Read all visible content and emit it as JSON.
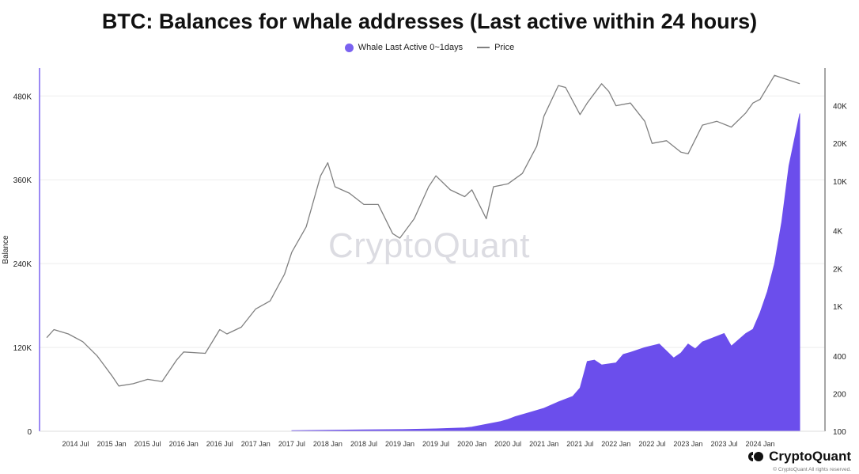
{
  "chart_data": {
    "type": "area",
    "title": "BTC: Balances for whale addresses (Last active within 24 hours)",
    "ylabel": "Balance",
    "legend_position": "top-center",
    "grid": true,
    "x_ticks": [
      "2014 Jul",
      "2015 Jan",
      "2015 Jul",
      "2016 Jan",
      "2016 Jul",
      "2017 Jan",
      "2017 Jul",
      "2018 Jan",
      "2018 Jul",
      "2019 Jan",
      "2019 Jul",
      "2020 Jan",
      "2020 Jul",
      "2021 Jan",
      "2021 Jul",
      "2022 Jan",
      "2022 Jul",
      "2023 Jan",
      "2023 Jul",
      "2024 Jan"
    ],
    "y_left": {
      "min": 0,
      "max": 480000,
      "ticks": [
        0,
        120000,
        240000,
        360000,
        480000
      ],
      "tick_labels": [
        "0",
        "120K",
        "240K",
        "360K",
        "480K"
      ]
    },
    "y_right": {
      "scale": "log",
      "min": 100,
      "max": 80000,
      "ticks": [
        100,
        200,
        400,
        1000,
        2000,
        4000,
        10000,
        20000,
        40000
      ],
      "tick_labels": [
        "100",
        "200",
        "400",
        "1K",
        "2K",
        "4K",
        "10K",
        "20K",
        "40K"
      ]
    },
    "series": [
      {
        "name": "Whale Last Active 0~1days",
        "type": "area",
        "color": "#6b4eec",
        "axis": "left",
        "x": [
          2017.5,
          2018.0,
          2018.5,
          2019.0,
          2019.5,
          2019.9,
          2020.0,
          2020.2,
          2020.4,
          2020.5,
          2020.6,
          2020.8,
          2021.0,
          2021.2,
          2021.4,
          2021.5,
          2021.6,
          2021.7,
          2021.8,
          2022.0,
          2022.1,
          2022.2,
          2022.4,
          2022.6,
          2022.8,
          2022.9,
          2023.0,
          2023.1,
          2023.2,
          2023.3,
          2023.5,
          2023.6,
          2023.8,
          2023.9,
          2024.0,
          2024.1,
          2024.2,
          2024.3,
          2024.4,
          2024.5,
          2024.55
        ],
        "values": [
          1000,
          1500,
          2000,
          2500,
          3500,
          5000,
          6000,
          10000,
          14000,
          17000,
          21000,
          27000,
          33000,
          42000,
          50000,
          62000,
          100000,
          102000,
          95000,
          98000,
          110000,
          113000,
          120000,
          125000,
          105000,
          112000,
          125000,
          118000,
          128000,
          132000,
          140000,
          122000,
          140000,
          146000,
          170000,
          200000,
          240000,
          300000,
          380000,
          430000,
          455000
        ]
      },
      {
        "name": "Price",
        "type": "line",
        "color": "#808080",
        "axis": "right",
        "x": [
          2014.1,
          2014.2,
          2014.4,
          2014.6,
          2014.8,
          2015.0,
          2015.1,
          2015.3,
          2015.5,
          2015.7,
          2015.9,
          2016.0,
          2016.3,
          2016.5,
          2016.6,
          2016.8,
          2017.0,
          2017.2,
          2017.4,
          2017.5,
          2017.7,
          2017.9,
          2018.0,
          2018.1,
          2018.3,
          2018.5,
          2018.7,
          2018.9,
          2019.0,
          2019.2,
          2019.4,
          2019.5,
          2019.7,
          2019.9,
          2020.0,
          2020.2,
          2020.3,
          2020.5,
          2020.7,
          2020.9,
          2021.0,
          2021.2,
          2021.3,
          2021.5,
          2021.6,
          2021.8,
          2021.9,
          2022.0,
          2022.2,
          2022.4,
          2022.5,
          2022.7,
          2022.9,
          2023.0,
          2023.2,
          2023.4,
          2023.6,
          2023.8,
          2023.9,
          2024.0,
          2024.2,
          2024.4,
          2024.55
        ],
        "values": [
          560,
          650,
          600,
          520,
          400,
          280,
          230,
          240,
          260,
          250,
          370,
          430,
          420,
          650,
          600,
          680,
          950,
          1100,
          1800,
          2700,
          4300,
          11000,
          14000,
          9000,
          8000,
          6500,
          6500,
          3800,
          3500,
          5000,
          9000,
          11000,
          8500,
          7500,
          8500,
          5000,
          9000,
          9500,
          11500,
          19000,
          33000,
          58000,
          56000,
          34000,
          42000,
          60000,
          52000,
          40000,
          42000,
          30000,
          20000,
          21000,
          17000,
          16500,
          28000,
          30000,
          27000,
          35000,
          42000,
          45000,
          70000,
          64000,
          60000
        ]
      }
    ]
  },
  "watermark": "CryptoQuant",
  "brand": {
    "name": "CryptoQuant",
    "copyright": "© CryptoQuant All rights reserved."
  }
}
